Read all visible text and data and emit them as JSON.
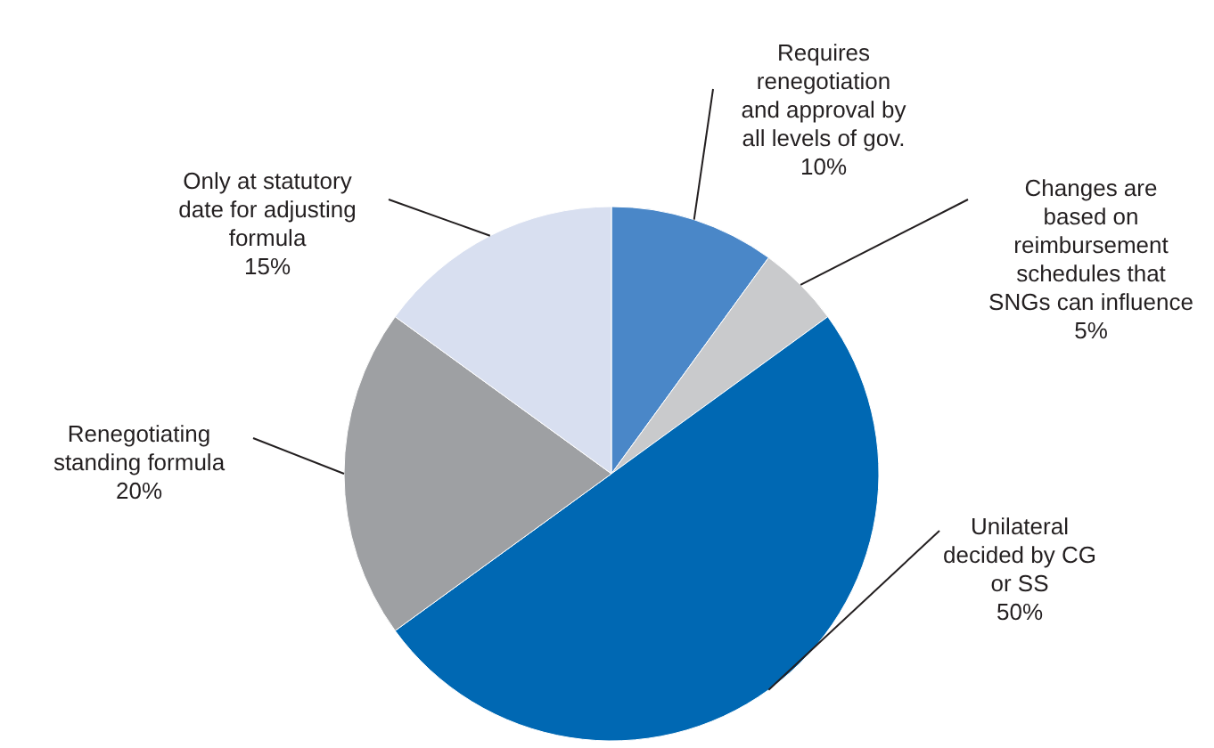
{
  "chart_data": {
    "type": "pie",
    "categories": [
      "Requires\nrenegotiation\nand approval by\nall levels of gov.",
      "Changes are\nbased on\nreimbursement\nschedules that\nSNGs can influence",
      "Unilateral\ndecided by CG\nor SS",
      "Renegotiating\nstanding formula",
      "Only at statutory\ndate for adjusting\nformula"
    ],
    "values": [
      10,
      5,
      50,
      20,
      15
    ],
    "value_labels": [
      "10%",
      "5%",
      "50%",
      "20%",
      "15%"
    ],
    "colors": [
      "#4a87c8",
      "#c9cacc",
      "#0068b3",
      "#9ea0a3",
      "#d8dff0"
    ]
  }
}
